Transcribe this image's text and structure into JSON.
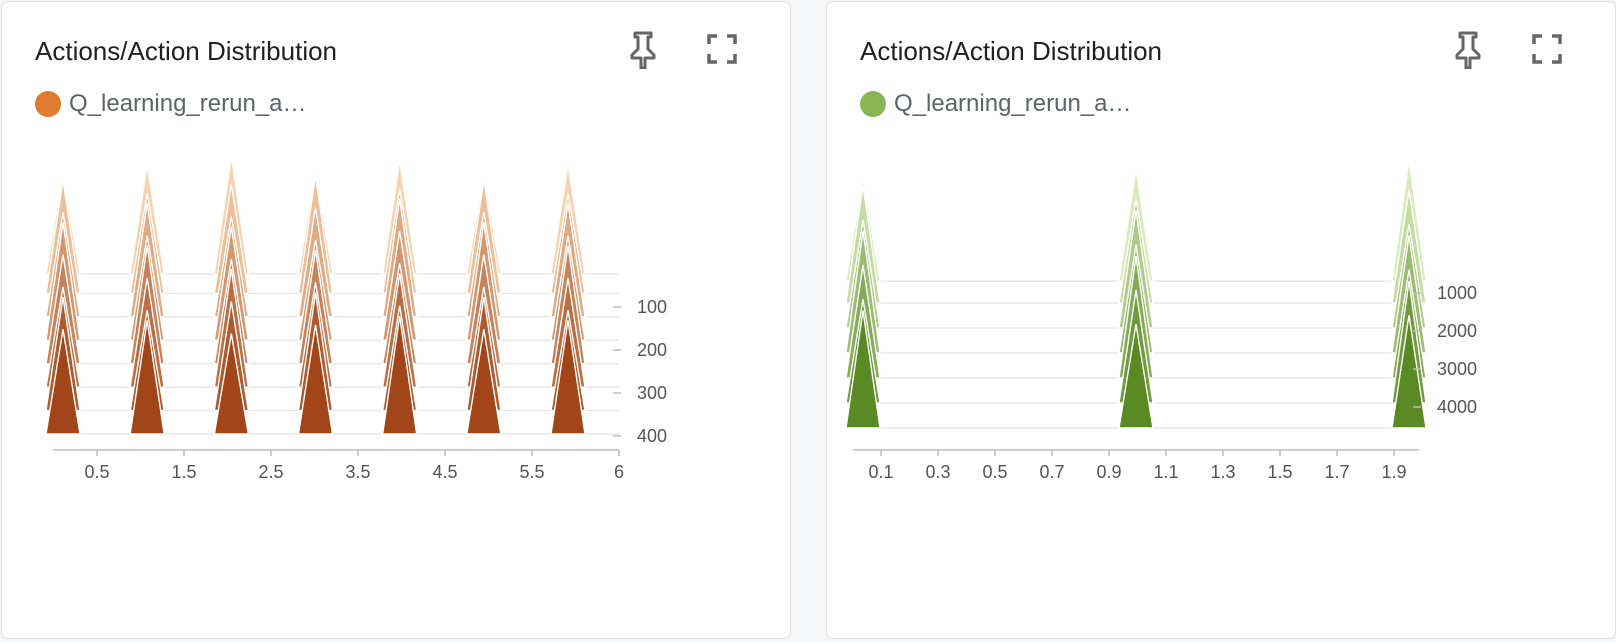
{
  "cards": [
    {
      "title": "Actions/Action Distribution",
      "legend_label": "Q_learning_rerun_a…",
      "color": "#e07b2e",
      "icons": {
        "pin": "pin-icon",
        "fullscreen": "fullscreen-icon"
      }
    },
    {
      "title": "Actions/Action Distribution",
      "legend_label": "Q_learning_rerun_a…",
      "color": "#8bb554",
      "icons": {
        "pin": "pin-icon",
        "fullscreen": "fullscreen-icon"
      }
    }
  ],
  "chart_data": [
    {
      "type": "histogram",
      "xlim": [
        0,
        6
      ],
      "xticks": [
        "0.5",
        "1.5",
        "2.5",
        "3.5",
        "4.5",
        "5.5",
        "6"
      ],
      "ylim": [
        0,
        420
      ],
      "yticks": [
        "100",
        "200",
        "300",
        "400"
      ],
      "peak_x": [
        0,
        1,
        2,
        3,
        4,
        5,
        6
      ],
      "steps": [
        10,
        60,
        120,
        180,
        240,
        300,
        360,
        420
      ],
      "color_light": "#f9d2ad",
      "color_dark": "#a2461a",
      "grid": false
    },
    {
      "type": "histogram",
      "xlim": [
        0,
        2
      ],
      "xticks": [
        "0.1",
        "0.3",
        "0.5",
        "0.7",
        "0.9",
        "1.1",
        "1.3",
        "1.5",
        "1.7",
        "1.9"
      ],
      "ylim": [
        0,
        4800
      ],
      "yticks": [
        "1000",
        "2000",
        "3000",
        "4000"
      ],
      "peak_x": [
        0,
        1,
        2
      ],
      "steps": [
        100,
        800,
        1600,
        2400,
        3200,
        4000,
        4800
      ],
      "color_light": "#d9ecbc",
      "color_dark": "#5a8a24",
      "grid": false
    }
  ]
}
